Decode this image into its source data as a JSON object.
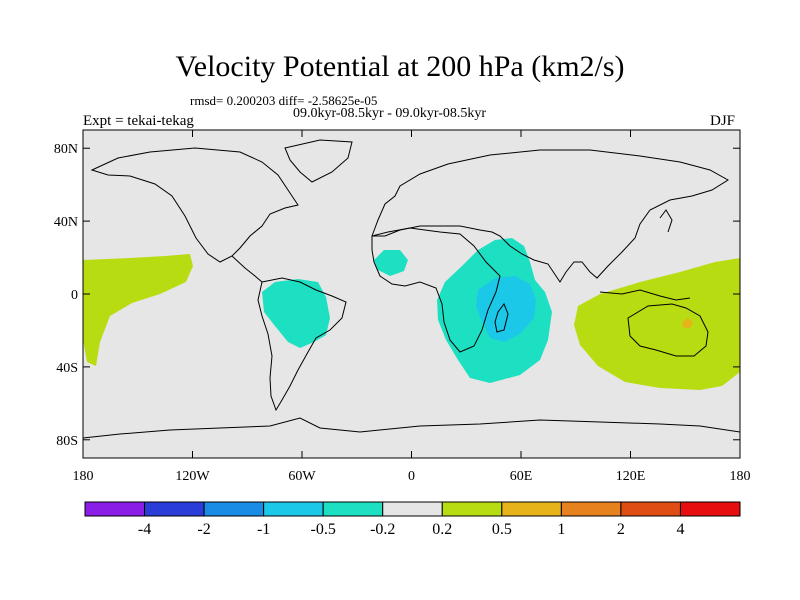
{
  "header": {
    "title": "Velocity Potential at 200 hPa (km2/s)",
    "stats": "rmsd= 0.200203 diff= -2.58625e-05",
    "period": "09.0kyr-08.5kyr - 09.0kyr-08.5kyr",
    "experiment": "Expt = tekai-tekag",
    "season": "DJF"
  },
  "map": {
    "projection": "cylindrical equidistant",
    "lon_range": [
      -180,
      180
    ],
    "lat_range": [
      -90,
      90
    ],
    "background_color": "#e6e6e6",
    "lat_ticks": [
      {
        "value": 80,
        "label": "80N"
      },
      {
        "value": 40,
        "label": "40N"
      },
      {
        "value": 0,
        "label": "0"
      },
      {
        "value": -40,
        "label": "40S"
      },
      {
        "value": -80,
        "label": "80S"
      }
    ],
    "lon_ticks": [
      {
        "value": -180,
        "label": "180"
      },
      {
        "value": -120,
        "label": "120W"
      },
      {
        "value": -60,
        "label": "60W"
      },
      {
        "value": 0,
        "label": "0"
      },
      {
        "value": 60,
        "label": "60E"
      },
      {
        "value": 120,
        "label": "120E"
      },
      {
        "value": 180,
        "label": "180"
      }
    ],
    "anomaly_regions": [
      {
        "name": "east-pacific-positive",
        "level": "0.2 to 0.5"
      },
      {
        "name": "south-america-negative",
        "level": "-0.5 to -0.2"
      },
      {
        "name": "west-africa-negative",
        "level": "-0.5 to -0.2"
      },
      {
        "name": "indian-ocean-negative",
        "level": "-0.5 to -0.2"
      },
      {
        "name": "indian-ocean-core-negative",
        "level": "-1 to -0.5"
      },
      {
        "name": "australia-positive",
        "level": "0.2 to 0.5"
      },
      {
        "name": "australia-spot",
        "level": "0.5 to 1"
      }
    ]
  },
  "colorbar": {
    "colors": [
      "#8b1ee6",
      "#2b3dd9",
      "#1a8ce6",
      "#1cc8e8",
      "#1de0c2",
      "#e6e6e6",
      "#b8dc12",
      "#e6b41a",
      "#e6821e",
      "#e04d14",
      "#e60e0e"
    ],
    "labels": [
      "-4",
      "-2",
      "-1",
      "-0.5",
      "-0.2",
      "0.2",
      "0.5",
      "1",
      "2",
      "4"
    ]
  }
}
